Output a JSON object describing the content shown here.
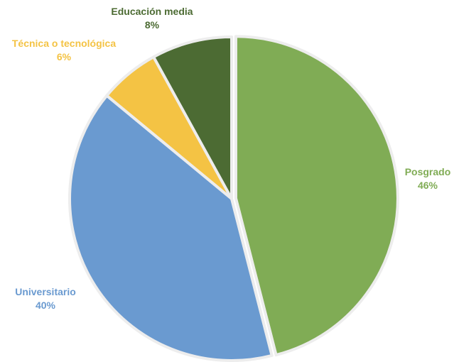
{
  "chart_data": {
    "type": "pie",
    "title": "",
    "slices": [
      {
        "name": "Posgrado",
        "value": 46,
        "value_label": "46%",
        "color": "#80AC55"
      },
      {
        "name": "Universitario",
        "value": 40,
        "value_label": "40%",
        "color": "#6A9AD0"
      },
      {
        "name": "Técnica o tecnológica",
        "value": 6,
        "value_label": "6%",
        "color": "#F4C344"
      },
      {
        "name": "Educación media",
        "value": 8,
        "value_label": "8%",
        "color": "#4C6B33"
      }
    ],
    "start_angle_deg": 0,
    "direction": "clockwise",
    "exploded": true,
    "slice_border_color": "#EDEDED"
  }
}
